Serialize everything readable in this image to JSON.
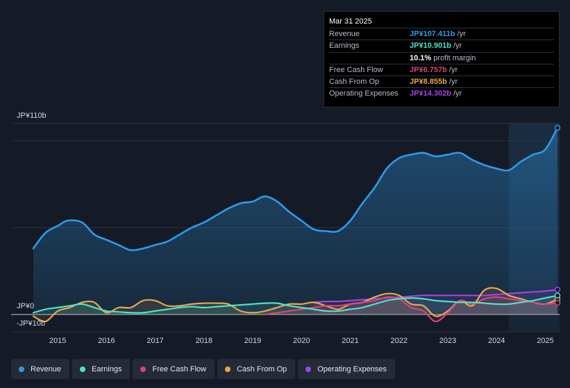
{
  "chart_data": {
    "type": "area",
    "currency_unit": "JP¥b",
    "y_labels": [
      {
        "value": 110,
        "text": "JP¥110b"
      },
      {
        "value": 0,
        "text": "JP¥0"
      },
      {
        "value": -10,
        "text": "-JP¥10b"
      }
    ],
    "ylim": [
      -10,
      110
    ],
    "xlim": [
      2014.5,
      2025.25
    ],
    "x_ticks": [
      "2015",
      "2016",
      "2017",
      "2018",
      "2019",
      "2020",
      "2021",
      "2022",
      "2023",
      "2024",
      "2025"
    ],
    "x_tick_values": [
      2015,
      2016,
      2017,
      2018,
      2019,
      2020,
      2021,
      2022,
      2023,
      2024,
      2025
    ],
    "highlight_start": 2024.25,
    "series": [
      {
        "name": "Revenue",
        "key": "revenue",
        "color": "#2e9bea",
        "x": [
          2014.5,
          2014.75,
          2015.0,
          2015.2,
          2015.5,
          2015.75,
          2016.0,
          2016.25,
          2016.5,
          2016.75,
          2017.0,
          2017.25,
          2017.5,
          2017.75,
          2018.0,
          2018.25,
          2018.5,
          2018.75,
          2019.0,
          2019.25,
          2019.5,
          2019.75,
          2020.0,
          2020.25,
          2020.5,
          2020.75,
          2021.0,
          2021.25,
          2021.5,
          2021.75,
          2022.0,
          2022.25,
          2022.5,
          2022.75,
          2023.0,
          2023.25,
          2023.5,
          2023.75,
          2024.0,
          2024.25,
          2024.5,
          2024.75,
          2025.0,
          2025.25
        ],
        "values": [
          38,
          47,
          51,
          54,
          53,
          46,
          43,
          40,
          37,
          38,
          40,
          42,
          46,
          50,
          53,
          57,
          61,
          64,
          65,
          68,
          65,
          59,
          54,
          49,
          48,
          48,
          54,
          64,
          73,
          84,
          90,
          92,
          93,
          91,
          92,
          93,
          89,
          86,
          84,
          83,
          88,
          92,
          95,
          107.411
        ]
      },
      {
        "name": "Earnings",
        "key": "earnings",
        "color": "#4fe3c9",
        "x": [
          2014.5,
          2014.75,
          2015.0,
          2015.25,
          2015.5,
          2015.75,
          2016.0,
          2016.25,
          2016.5,
          2016.75,
          2017.0,
          2017.25,
          2017.5,
          2017.75,
          2018.0,
          2018.25,
          2018.5,
          2018.75,
          2019.0,
          2019.25,
          2019.5,
          2019.75,
          2020.0,
          2020.25,
          2020.5,
          2020.75,
          2021.0,
          2021.25,
          2021.5,
          2021.75,
          2022.0,
          2022.25,
          2022.5,
          2022.75,
          2023.0,
          2023.25,
          2023.5,
          2023.75,
          2024.0,
          2024.25,
          2024.5,
          2024.75,
          2025.0,
          2025.25
        ],
        "values": [
          1,
          3,
          4,
          5,
          6,
          4,
          2,
          1.5,
          1,
          1,
          2,
          3,
          4,
          4.5,
          4,
          4.5,
          5,
          5.5,
          6,
          6.5,
          6.5,
          5,
          4,
          3,
          2,
          2,
          3,
          4,
          6,
          8,
          9,
          9.5,
          9,
          8,
          7.5,
          7,
          7,
          6.5,
          6,
          6,
          7,
          8,
          9.5,
          10.901
        ]
      },
      {
        "name": "Free Cash Flow",
        "key": "fcf",
        "color": "#d4477a",
        "x": [
          2019.25,
          2019.5,
          2019.75,
          2020.0,
          2020.25,
          2020.5,
          2020.75,
          2021.0,
          2021.25,
          2021.5,
          2021.75,
          2022.0,
          2022.25,
          2022.5,
          2022.75,
          2023.0,
          2023.25,
          2023.5,
          2023.75,
          2024.0,
          2024.25,
          2024.5,
          2024.75,
          2025.0,
          2025.25
        ],
        "values": [
          0,
          1,
          2,
          3,
          4,
          5,
          5,
          6,
          7,
          8,
          10,
          9,
          4,
          2,
          -4,
          1,
          8,
          6,
          9,
          10,
          9,
          8,
          7,
          6,
          6.757
        ]
      },
      {
        "name": "Cash From Op",
        "key": "cfo",
        "color": "#e8a84c",
        "x": [
          2014.5,
          2014.75,
          2015.0,
          2015.25,
          2015.5,
          2015.75,
          2016.0,
          2016.25,
          2016.5,
          2016.75,
          2017.0,
          2017.25,
          2017.5,
          2017.75,
          2018.0,
          2018.25,
          2018.5,
          2018.75,
          2019.0,
          2019.25,
          2019.5,
          2019.75,
          2020.0,
          2020.25,
          2020.5,
          2020.75,
          2021.0,
          2021.25,
          2021.5,
          2021.75,
          2022.0,
          2022.25,
          2022.5,
          2022.75,
          2023.0,
          2023.25,
          2023.5,
          2023.75,
          2024.0,
          2024.25,
          2024.5,
          2024.75,
          2025.0,
          2025.25
        ],
        "values": [
          -1,
          -4,
          2,
          4,
          7,
          7,
          1,
          4,
          4,
          8,
          8,
          5,
          5,
          6,
          6.5,
          6.5,
          6,
          2,
          1,
          2,
          4,
          6,
          6,
          7,
          5,
          3,
          6,
          7,
          10,
          12,
          11,
          6,
          5,
          -1,
          2,
          8,
          5,
          14,
          15,
          11,
          9,
          7,
          6,
          8.855
        ]
      },
      {
        "name": "Operating Expenses",
        "key": "opex",
        "color": "#a145e8",
        "x": [
          2020.25,
          2020.5,
          2020.75,
          2021.0,
          2021.25,
          2021.5,
          2021.75,
          2022.0,
          2022.25,
          2022.5,
          2022.75,
          2023.0,
          2023.25,
          2023.5,
          2023.75,
          2024.0,
          2024.25,
          2024.5,
          2024.75,
          2025.0,
          2025.25
        ],
        "values": [
          7,
          7.5,
          7.5,
          8,
          8.5,
          9,
          9.5,
          10,
          10.5,
          11,
          11,
          11,
          11,
          11,
          11,
          11.5,
          12,
          12.5,
          13,
          13.5,
          14.302
        ]
      }
    ]
  },
  "tooltip": {
    "date": "Mar 31 2025",
    "rows": [
      {
        "label": "Revenue",
        "value": "JP¥107.411b",
        "unit": " /yr",
        "color": "#2e9bea"
      },
      {
        "label": "Earnings",
        "value": "JP¥10.901b",
        "unit": " /yr",
        "color": "#4fe3c9"
      },
      {
        "label": "",
        "value": "10.1%",
        "unit": " profit margin",
        "color": "#ffffff"
      },
      {
        "label": "Free Cash Flow",
        "value": "JP¥6.757b",
        "unit": " /yr",
        "color": "#d4477a"
      },
      {
        "label": "Cash From Op",
        "value": "JP¥8.855b",
        "unit": " /yr",
        "color": "#e8a84c"
      },
      {
        "label": "Operating Expenses",
        "value": "JP¥14.302b",
        "unit": " /yr",
        "color": "#a145e8"
      }
    ]
  },
  "legend": [
    {
      "label": "Revenue",
      "color": "#2e9bea"
    },
    {
      "label": "Earnings",
      "color": "#4fe3c9"
    },
    {
      "label": "Free Cash Flow",
      "color": "#d4477a"
    },
    {
      "label": "Cash From Op",
      "color": "#e8a84c"
    },
    {
      "label": "Operating Expenses",
      "color": "#a145e8"
    }
  ]
}
